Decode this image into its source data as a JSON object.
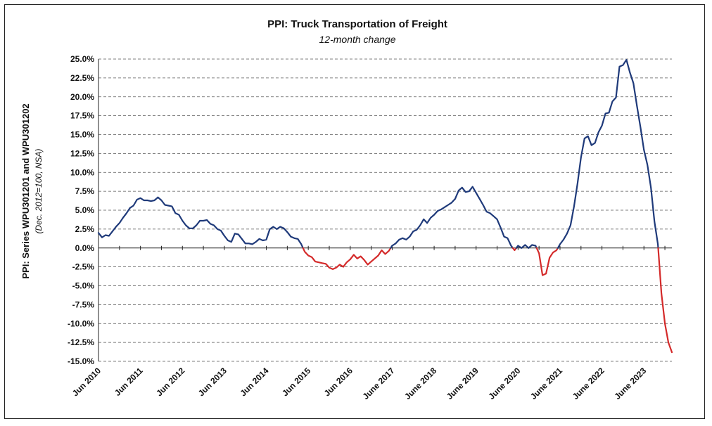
{
  "chart_data": {
    "type": "line",
    "title": "PPI: Truck Transportation of Freight",
    "subtitle": "12-month change",
    "ylabel": "PPI: Series WPU301201 and WPU301202",
    "ylabel_note": "(Dec. 2012=100, NSA)",
    "xlabel": "",
    "ylim": [
      -15,
      25
    ],
    "yticks": [
      "25.0%",
      "22.5%",
      "20.0%",
      "17.5%",
      "15.0%",
      "12.5%",
      "10.0%",
      "7.5%",
      "5.0%",
      "2.5%",
      "0.0%",
      "-2.5%",
      "-5.0%",
      "-7.5%",
      "-10.0%",
      "-12.5%",
      "-15.0%"
    ],
    "xticks": [
      "Jun 2010",
      "Jun 2011",
      "Jun 2012",
      "Jun 2013",
      "Jun 2014",
      "Jun 2015",
      "Jun 2016",
      "June 2017",
      "June 2018",
      "June 2019",
      "June 2020",
      "June 2021",
      "June 2022",
      "June 2023"
    ],
    "grid": true,
    "legend": "none",
    "colors": {
      "positive": "#1f3a7a",
      "negative": "#d42a2a"
    },
    "x_start": "Jun 2010",
    "x_end": "June 2023",
    "frequency": "monthly",
    "values": [
      2.0,
      1.4,
      1.7,
      1.6,
      2.2,
      2.8,
      3.3,
      4.0,
      4.6,
      5.3,
      5.6,
      6.4,
      6.6,
      6.3,
      6.3,
      6.2,
      6.3,
      6.7,
      6.3,
      5.7,
      5.6,
      5.5,
      4.6,
      4.4,
      3.6,
      3.0,
      2.6,
      2.6,
      3.0,
      3.6,
      3.6,
      3.7,
      3.2,
      3.0,
      2.5,
      2.3,
      1.6,
      1.0,
      0.8,
      1.9,
      1.8,
      1.2,
      0.6,
      0.6,
      0.5,
      0.8,
      1.2,
      1.0,
      1.1,
      2.5,
      2.8,
      2.5,
      2.8,
      2.6,
      2.1,
      1.5,
      1.3,
      1.2,
      0.5,
      -0.5,
      -1.0,
      -1.2,
      -1.8,
      -1.9,
      -2.0,
      -2.1,
      -2.6,
      -2.8,
      -2.6,
      -2.2,
      -2.5,
      -1.9,
      -1.5,
      -0.9,
      -1.4,
      -1.1,
      -1.6,
      -2.2,
      -1.8,
      -1.4,
      -1.0,
      -0.3,
      -0.8,
      -0.4,
      0.3,
      0.6,
      1.1,
      1.3,
      1.1,
      1.5,
      2.2,
      2.4,
      3.0,
      3.8,
      3.3,
      4.0,
      4.4,
      4.9,
      5.1,
      5.4,
      5.7,
      6.0,
      6.5,
      7.6,
      8.0,
      7.4,
      7.5,
      8.1,
      7.3,
      6.5,
      5.7,
      4.8,
      4.6,
      4.2,
      3.8,
      2.7,
      1.5,
      1.3,
      0.3,
      -0.3,
      0.3,
      0.0,
      0.4,
      0.0,
      0.4,
      0.3,
      -0.7,
      -3.6,
      -3.4,
      -1.3,
      -0.6,
      -0.3,
      0.5,
      1.1,
      1.9,
      3.0,
      5.5,
      8.5,
      12.0,
      14.5,
      14.8,
      13.6,
      13.9,
      15.3,
      16.2,
      17.8,
      17.9,
      19.4,
      19.9,
      24.0,
      24.2,
      24.9,
      23.2,
      21.8,
      18.8,
      16.0,
      13.0,
      11.0,
      8.0,
      3.5,
      0.5,
      -6.0,
      -10.0,
      -12.5,
      -13.8
    ]
  }
}
